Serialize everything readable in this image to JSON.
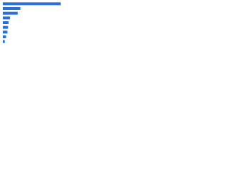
{
  "chart_data": {
    "type": "barh",
    "categories": [
      null,
      null,
      null,
      null,
      null,
      null,
      null,
      null,
      null
    ],
    "values": [
      89,
      27,
      23,
      11,
      9,
      8,
      7,
      5,
      3
    ],
    "color": "#2a6fd6",
    "xlim": [
      0,
      100
    ]
  }
}
